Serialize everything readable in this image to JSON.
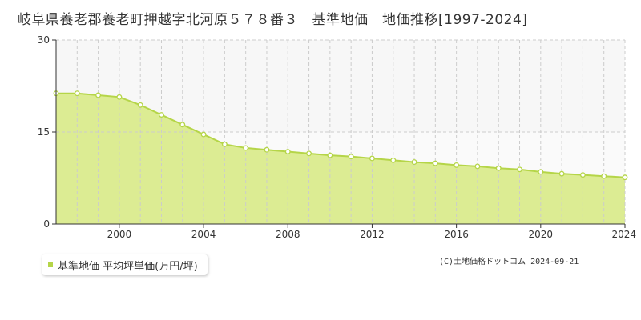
{
  "title": "岐阜県養老郡養老町押越字北河原５７８番３　基準地価　地価推移[1997-2024]",
  "legend_label": "基準地価 平均坪単価(万円/坪)",
  "footer": "(C)土地価格ドットコム 2024-09-21",
  "colors": {
    "fill": "#dcec93",
    "line": "#b5d548",
    "grid": "#cccccc",
    "axis": "#333333"
  },
  "chart_data": {
    "type": "area",
    "title": "岐阜県養老郡養老町押越字北河原５７８番３　基準地価　地価推移[1997-2024]",
    "xlabel": "",
    "ylabel": "",
    "xlim": [
      1997,
      2024
    ],
    "ylim": [
      0,
      30
    ],
    "x_ticks": [
      2000,
      2004,
      2008,
      2012,
      2016,
      2020,
      2024
    ],
    "y_ticks": [
      0,
      15,
      30
    ],
    "grid": true,
    "series": [
      {
        "name": "基準地価 平均坪単価(万円/坪)",
        "x": [
          1997,
          1998,
          1999,
          2000,
          2001,
          2002,
          2003,
          2004,
          2005,
          2006,
          2007,
          2008,
          2009,
          2010,
          2011,
          2012,
          2013,
          2014,
          2015,
          2016,
          2017,
          2018,
          2019,
          2020,
          2021,
          2022,
          2023,
          2024
        ],
        "values": [
          21.3,
          21.3,
          21.0,
          20.7,
          19.4,
          17.8,
          16.2,
          14.6,
          13.0,
          12.4,
          12.1,
          11.8,
          11.5,
          11.2,
          11.0,
          10.7,
          10.4,
          10.1,
          9.9,
          9.6,
          9.4,
          9.1,
          8.9,
          8.5,
          8.2,
          8.0,
          7.8,
          7.6
        ]
      }
    ]
  }
}
